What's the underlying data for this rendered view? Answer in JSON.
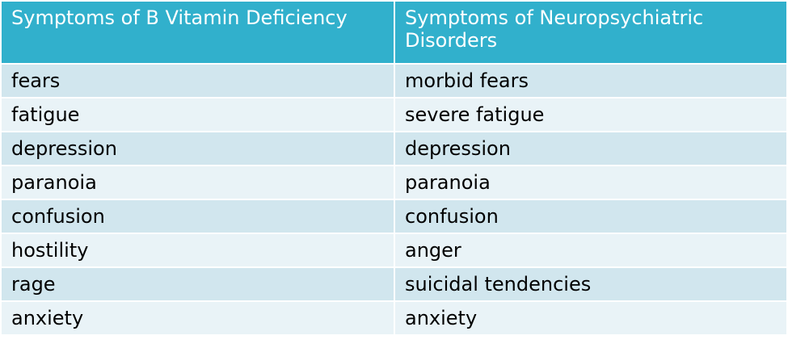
{
  "table": {
    "header": [
      "Symptoms of B Vitamin Deficiency",
      "Symptoms of Neuropsychiatric Disorders"
    ],
    "rows": [
      [
        "fears",
        "morbid fears"
      ],
      [
        "fatigue",
        "severe fatigue"
      ],
      [
        "depression",
        "depression"
      ],
      [
        "paranoia",
        "paranoia"
      ],
      [
        "confusion",
        "confusion"
      ],
      [
        "hostility",
        "anger"
      ],
      [
        "rage",
        "suicidal tendencies"
      ],
      [
        "anxiety",
        "anxiety"
      ]
    ]
  }
}
